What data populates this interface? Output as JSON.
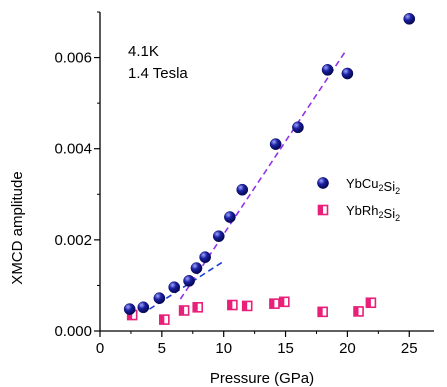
{
  "chart_data": {
    "type": "scatter",
    "xlabel": "Pressure (GPa)",
    "ylabel": "XMCD amplitude",
    "xlim": [
      0,
      27
    ],
    "ylim": [
      0,
      0.007
    ],
    "x_ticks": [
      0,
      5,
      10,
      15,
      20,
      25
    ],
    "y_ticks": [
      0.0,
      0.002,
      0.004,
      0.006
    ],
    "y_tick_labels": [
      "0.000",
      "0.002",
      "0.004",
      "0.006"
    ],
    "annotations": [
      "4.1K",
      "1.4 Tesla"
    ],
    "legend_position": "right",
    "series": [
      {
        "name": "YbCu2Si2",
        "marker": "filled-sphere",
        "color": "#1b1fa3",
        "x": [
          2.4,
          3.5,
          4.8,
          6.0,
          7.2,
          7.8,
          8.5,
          9.6,
          10.5,
          11.5,
          14.2,
          16.0,
          18.4,
          20.0,
          25.0
        ],
        "y": [
          0.00048,
          0.00052,
          0.00072,
          0.00096,
          0.0011,
          0.00138,
          0.00162,
          0.00208,
          0.0025,
          0.0031,
          0.0041,
          0.00447,
          0.00573,
          0.00565,
          0.00685
        ]
      },
      {
        "name": "YbRh2Si2",
        "marker": "half-filled-square",
        "color": "#e8207a",
        "x": [
          2.6,
          5.2,
          6.8,
          7.9,
          10.7,
          11.9,
          14.1,
          14.9,
          18.0,
          20.9,
          21.9
        ],
        "y": [
          0.00035,
          0.00025,
          0.00045,
          0.00052,
          0.00057,
          0.00055,
          0.0006,
          0.00064,
          0.00042,
          0.00043,
          0.00062
        ]
      }
    ],
    "fit_lines": [
      {
        "color": "#1b3dd6",
        "x": [
          4.0,
          10.0
        ],
        "y": [
          0.00048,
          0.00153
        ]
      },
      {
        "color": "#9333ea",
        "x": [
          6.5,
          19.8
        ],
        "y": [
          0.0007,
          0.00612
        ]
      }
    ]
  }
}
